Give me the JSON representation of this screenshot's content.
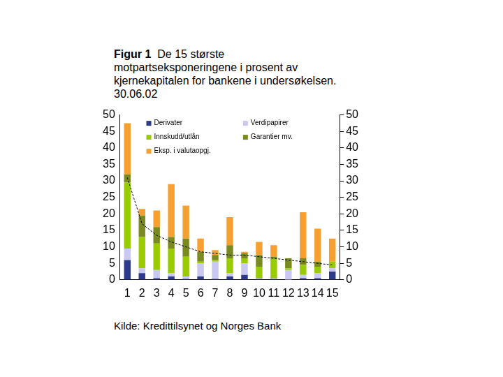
{
  "chart_data": {
    "type": "bar",
    "title": "Figur 1  De 15 største motpartseksponeringene i prosent av kjernekapitalen for bankene i undersøkelsen. 30.06.02",
    "source": "Kilde: Kredittilsynet og Norges Bank",
    "categories": [
      "1",
      "2",
      "3",
      "4",
      "5",
      "6",
      "7",
      "8",
      "9",
      "10",
      "11",
      "12",
      "13",
      "14",
      "15"
    ],
    "stacked": true,
    "grid": false,
    "legend": "top",
    "ylim": [
      0,
      50
    ],
    "yticks": [
      0,
      5,
      10,
      15,
      20,
      25,
      30,
      35,
      40,
      45,
      50
    ],
    "y2lim": [
      0,
      50
    ],
    "y2ticks": [
      0,
      5,
      10,
      15,
      20,
      25,
      30,
      35,
      40,
      45,
      50
    ],
    "series": [
      {
        "name": "Derivater",
        "color": "#2e3a8c",
        "values": [
          6,
          2,
          0.5,
          1,
          0.3,
          1,
          0.3,
          1,
          1.5,
          0.3,
          0.3,
          0,
          0.5,
          0.5,
          2.5
        ]
      },
      {
        "name": "Verdipapirer",
        "color": "#c8c8f0",
        "values": [
          3.5,
          1.5,
          2.5,
          1,
          0.7,
          4,
          5.2,
          1,
          3.5,
          0.2,
          0.2,
          3,
          1,
          1.5,
          1
        ]
      },
      {
        "name": "Innskudd/utlån",
        "color": "#99cc00",
        "values": [
          20,
          9.5,
          8,
          7.5,
          6,
          0.5,
          0.5,
          4.5,
          1.5,
          3.5,
          6,
          0.5,
          3,
          2,
          2
        ]
      },
      {
        "name": "Garantier mv.",
        "color": "#7a8a20",
        "values": [
          2.5,
          6.5,
          5,
          3.5,
          5.5,
          3,
          1.5,
          4,
          1.5,
          3.5,
          0.5,
          3,
          2,
          1.5,
          0
        ]
      },
      {
        "name": "Eksp. i valutaopgj.",
        "color": "#f5a030",
        "values": [
          15.5,
          2,
          5,
          16,
          10,
          4,
          1.5,
          8.5,
          0.5,
          4,
          3.5,
          0,
          14,
          10,
          7
        ]
      },
      {
        "type": "line",
        "line_style": "dashed",
        "color": "#000000",
        "axis": "y2",
        "values": [
          31,
          17,
          13.5,
          11.5,
          10,
          8.5,
          8,
          7.5,
          7.5,
          7,
          6.5,
          6,
          5.5,
          5,
          4.5
        ]
      }
    ]
  }
}
